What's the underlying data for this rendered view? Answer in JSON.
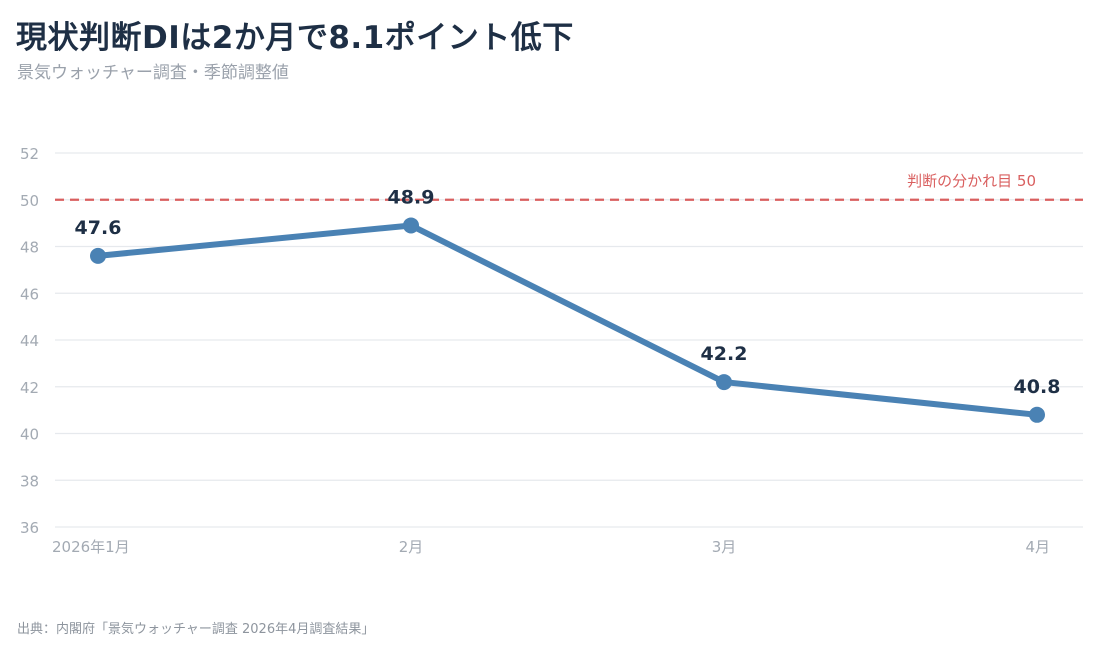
{
  "header": {
    "title": "現状判断DIは2か月で8.1ポイント低下",
    "subtitle": "景気ウォッチャー調査・季節調整値"
  },
  "footer": {
    "source": "出典：内閣府「景気ウォッチャー調査 2026年4月調査結果」"
  },
  "colors": {
    "line": "#4a82b4",
    "reference": "#d95f5f",
    "grid": "#e6e9ed",
    "text_dark": "#1e2f45",
    "text_muted": "#a3aab3"
  },
  "chart_data": {
    "type": "line",
    "categories": [
      "2026年1月",
      "2月",
      "3月",
      "4月"
    ],
    "values": [
      47.6,
      48.9,
      42.2,
      40.8
    ],
    "data_labels": [
      "47.6",
      "48.9",
      "42.2",
      "40.8"
    ],
    "ylim": [
      36,
      52
    ],
    "yticks": [
      "36",
      "38",
      "40",
      "42",
      "44",
      "46",
      "48",
      "50",
      "52"
    ],
    "ytick_values": [
      36,
      38,
      40,
      42,
      44,
      46,
      48,
      50,
      52
    ],
    "grid": true,
    "reference_line": {
      "value": 50,
      "label": "判断の分かれ目 50",
      "style": "dashed"
    }
  }
}
